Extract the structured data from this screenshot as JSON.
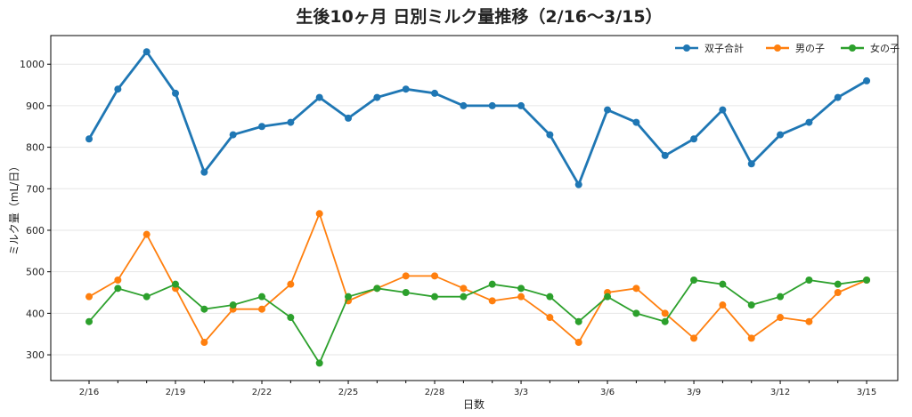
{
  "chart_data": {
    "type": "line",
    "title": "生後10ヶ月 日別ミルク量推移（2/16〜3/15）",
    "xlabel": "日数",
    "ylabel": "ミルク量（mL/日）",
    "x": [
      "2/16",
      "2/17",
      "2/18",
      "2/19",
      "2/20",
      "2/21",
      "2/22",
      "2/23",
      "2/24",
      "2/25",
      "2/26",
      "2/27",
      "2/28",
      "3/1",
      "3/2",
      "3/3",
      "3/4",
      "3/5",
      "3/6",
      "3/7",
      "3/8",
      "3/9",
      "3/10",
      "3/11",
      "3/12",
      "3/13",
      "3/14",
      "3/15"
    ],
    "xticks": [
      "2/16",
      "2/19",
      "2/22",
      "2/25",
      "2/28",
      "3/3",
      "3/6",
      "3/9",
      "3/12",
      "3/15"
    ],
    "yticks": [
      300,
      400,
      500,
      600,
      700,
      800,
      900,
      1000
    ],
    "ylim": [
      238,
      1069
    ],
    "grid": "horizontal",
    "legend": "top-right",
    "series": [
      {
        "name": "双子合計",
        "color": "#1f77b4",
        "values": [
          820,
          940,
          1030,
          930,
          740,
          830,
          850,
          860,
          920,
          870,
          920,
          940,
          930,
          900,
          900,
          900,
          830,
          710,
          890,
          860,
          780,
          820,
          890,
          760,
          830,
          860,
          920,
          960
        ]
      },
      {
        "name": "男の子",
        "color": "#ff7f0e",
        "values": [
          440,
          480,
          590,
          460,
          330,
          410,
          410,
          470,
          640,
          430,
          460,
          490,
          490,
          460,
          430,
          440,
          390,
          330,
          450,
          460,
          400,
          340,
          420,
          340,
          390,
          380,
          450,
          480
        ]
      },
      {
        "name": "女の子",
        "color": "#2ca02c",
        "values": [
          380,
          460,
          440,
          470,
          410,
          420,
          440,
          390,
          280,
          440,
          460,
          450,
          440,
          440,
          470,
          460,
          440,
          380,
          440,
          400,
          380,
          480,
          470,
          420,
          440,
          480,
          470,
          480
        ]
      }
    ]
  }
}
